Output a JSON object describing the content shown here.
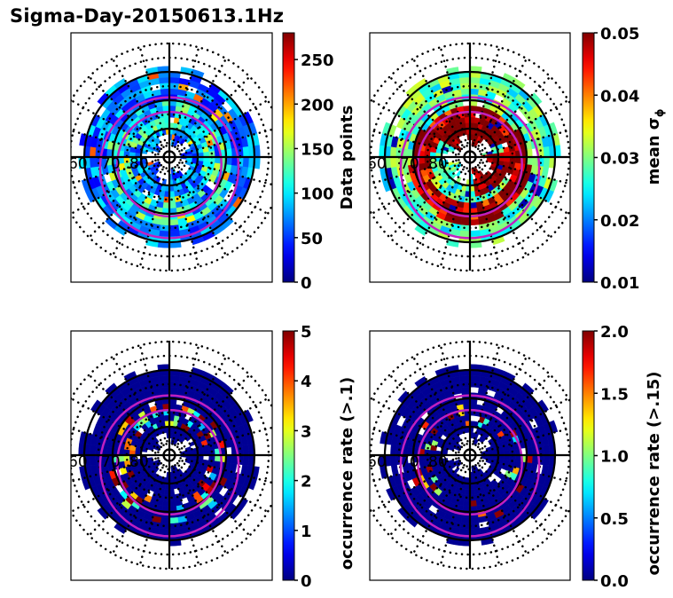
{
  "title": "Sigma-Day-20150613.1Hz",
  "chart_data": [
    {
      "type": "heatmap",
      "projection": "polar (MLAT/MLT)",
      "position": "top-left",
      "colormap": "jet",
      "colorbar": {
        "label": "Data points",
        "range": [
          0,
          280
        ],
        "ticks": [
          0,
          50,
          100,
          150,
          200,
          250
        ]
      },
      "lat_labels": [
        "60",
        "70",
        "80"
      ],
      "description": "Counts mostly 0-120 (blue/cyan), with a ring of higher values ~150-200 near 70-80 MLAT; a few orange cells ~230"
    },
    {
      "type": "heatmap",
      "projection": "polar (MLAT/MLT)",
      "position": "top-right",
      "colormap": "jet",
      "colorbar": {
        "label": "mean σ_φ",
        "range": [
          0.01,
          0.05
        ],
        "ticks": [
          0.01,
          0.02,
          0.03,
          0.04,
          0.05
        ]
      },
      "lat_labels": [
        "60",
        "70",
        "80"
      ],
      "description": "Outer ring 0.02-0.03; inner auroral oval region saturating at 0.05 (dark red) on dayside/noon and dusk sectors"
    },
    {
      "type": "heatmap",
      "projection": "polar (MLAT/MLT)",
      "position": "bottom-left",
      "colormap": "jet",
      "colorbar": {
        "label": "occurrence rate (>.1)",
        "range": [
          0,
          5
        ],
        "ticks": [
          0,
          1,
          2,
          3,
          4,
          5
        ]
      },
      "lat_labels": [
        "60",
        "70",
        "80"
      ],
      "description": "Mostly 0; scattered high occurrence (up to 5) along the auroral oval between the magenta boundaries"
    },
    {
      "type": "heatmap",
      "projection": "polar (MLAT/MLT)",
      "position": "bottom-right",
      "colormap": "jet",
      "colorbar": {
        "label": "occurrence rate (>.15)",
        "range": [
          0.0,
          2.0
        ],
        "ticks": [
          0.0,
          0.5,
          1.0,
          1.5,
          2.0
        ]
      },
      "lat_labels": [
        "60",
        "70",
        "80"
      ],
      "description": "Mostly 0; sparse high values (up to 2.0) along the auroral oval"
    }
  ],
  "panels": [
    {
      "cb_label": "Data points",
      "ticks": [
        "0",
        "50",
        "100",
        "150",
        "200",
        "250"
      ],
      "tickvals": [
        0,
        50,
        100,
        150,
        200,
        250
      ],
      "vmin": 0,
      "vmax": 280,
      "mode": "count"
    },
    {
      "cb_label": "mean σ",
      "cb_sub": "ϕ",
      "ticks": [
        "0.01",
        "0.02",
        "0.03",
        "0.04",
        "0.05"
      ],
      "tickvals": [
        0.01,
        0.02,
        0.03,
        0.04,
        0.05
      ],
      "vmin": 0.01,
      "vmax": 0.05,
      "mode": "sigma"
    },
    {
      "cb_label": "occurrence rate (>.1)",
      "ticks": [
        "0",
        "1",
        "2",
        "3",
        "4",
        "5"
      ],
      "tickvals": [
        0,
        1,
        2,
        3,
        4,
        5
      ],
      "vmin": 0,
      "vmax": 5,
      "mode": "occ1"
    },
    {
      "cb_label": "occurrence rate (>.15)",
      "ticks": [
        "0.0",
        "0.5",
        "1.0",
        "1.5",
        "2.0"
      ],
      "tickvals": [
        0,
        0.5,
        1.0,
        1.5,
        2.0
      ],
      "vmin": 0,
      "vmax": 2,
      "mode": "occ2"
    }
  ],
  "lat_labels": [
    "60",
    "70",
    "80"
  ],
  "colors": {
    "oval_boundary": "#c020c0",
    "grid": "#000000"
  }
}
